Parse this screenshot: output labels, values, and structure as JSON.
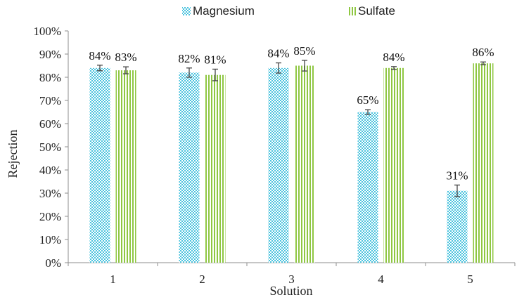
{
  "chart_data": {
    "type": "bar",
    "categories": [
      "1",
      "2",
      "3",
      "4",
      "5"
    ],
    "series": [
      {
        "name": "Magnesium",
        "values": [
          84,
          82,
          84,
          65,
          31
        ],
        "error": [
          1.2,
          2.0,
          2.2,
          1.0,
          2.5
        ],
        "labels": [
          "84%",
          "82%",
          "84%",
          "65%",
          "31%"
        ],
        "color": "#4bc3de",
        "pattern": "checker"
      },
      {
        "name": "Sulfate",
        "values": [
          83,
          81,
          85,
          84,
          86
        ],
        "error": [
          1.5,
          2.5,
          2.3,
          0.6,
          0.6
        ],
        "labels": [
          "83%",
          "81%",
          "85%",
          "84%",
          "86%"
        ],
        "color": "#8fc742",
        "pattern": "vertical-stripes"
      }
    ],
    "xlabel": "Solution",
    "ylabel": "Rejection",
    "ylim": [
      0,
      100
    ],
    "yticks": [
      "0%",
      "10%",
      "20%",
      "30%",
      "40%",
      "50%",
      "60%",
      "70%",
      "80%",
      "90%",
      "100%"
    ],
    "grid": false,
    "legend_position": "top"
  }
}
